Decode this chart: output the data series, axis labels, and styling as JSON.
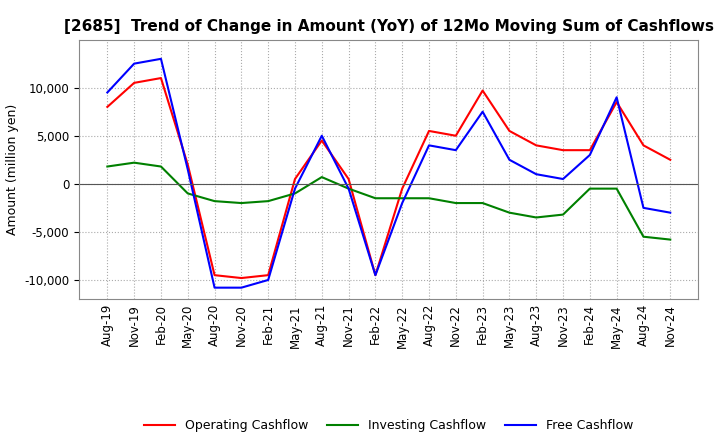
{
  "title": "[2685]  Trend of Change in Amount (YoY) of 12Mo Moving Sum of Cashflows",
  "ylabel": "Amount (million yen)",
  "title_fontsize": 11,
  "label_fontsize": 9,
  "tick_fontsize": 8.5,
  "ylim": [
    -12000,
    15000
  ],
  "yticks": [
    -10000,
    -5000,
    0,
    5000,
    10000
  ],
  "background_color": "#ffffff",
  "grid_color": "#aaaaaa",
  "x_labels": [
    "Aug-19",
    "Nov-19",
    "Feb-20",
    "May-20",
    "Aug-20",
    "Nov-20",
    "Feb-21",
    "May-21",
    "Aug-21",
    "Nov-21",
    "Feb-22",
    "May-22",
    "Aug-22",
    "Nov-22",
    "Feb-23",
    "May-23",
    "Aug-23",
    "Nov-23",
    "Feb-24",
    "May-24",
    "Aug-24",
    "Nov-24"
  ],
  "operating": [
    8000,
    10500,
    11000,
    2000,
    -9500,
    -9800,
    -9500,
    500,
    4500,
    500,
    -9500,
    -500,
    5500,
    5000,
    9700,
    5500,
    4000,
    3500,
    3500,
    8500,
    4000,
    2500
  ],
  "investing": [
    1800,
    2200,
    1800,
    -1000,
    -1800,
    -2000,
    -1800,
    -1000,
    700,
    -500,
    -1500,
    -1500,
    -1500,
    -2000,
    -2000,
    -3000,
    -3500,
    -3200,
    -500,
    -500,
    -5500,
    -5800
  ],
  "free": [
    9500,
    12500,
    13000,
    1500,
    -10800,
    -10800,
    -10000,
    -500,
    5000,
    -500,
    -9500,
    -2000,
    4000,
    3500,
    7500,
    2500,
    1000,
    500,
    3000,
    9000,
    -2500,
    -3000
  ],
  "op_color": "#ff0000",
  "inv_color": "#008000",
  "free_color": "#0000ff",
  "line_width": 1.5
}
